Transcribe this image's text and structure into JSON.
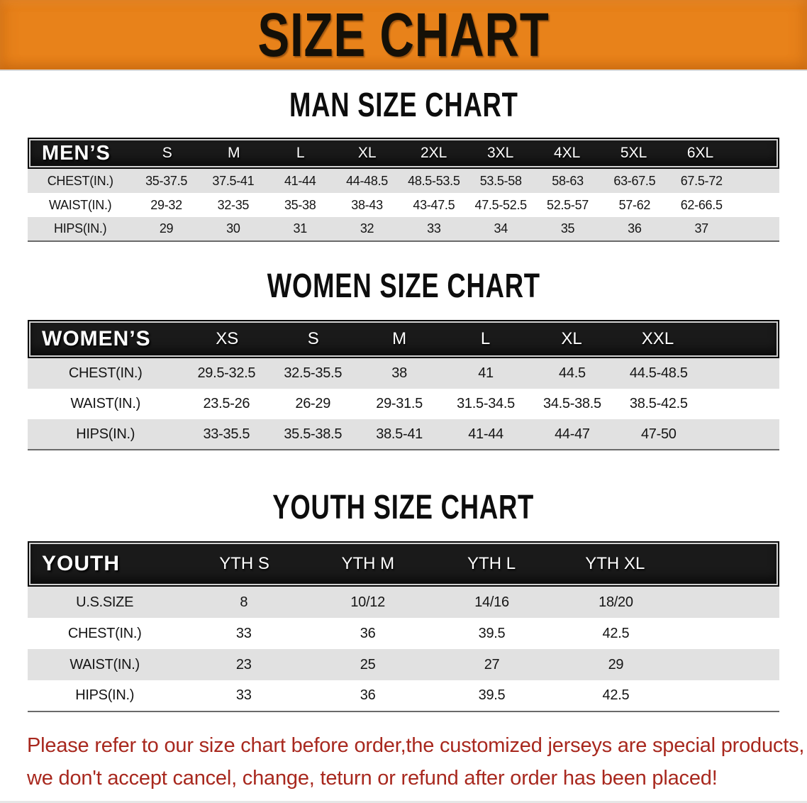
{
  "title_banner": {
    "text": "SIZE CHART"
  },
  "sections": [
    {
      "heading": "MAN SIZE CHART",
      "group_label": "MEN’S",
      "columns": [
        "S",
        "M",
        "L",
        "XL",
        "2XL",
        "3XL",
        "4XL",
        "5XL",
        "6XL"
      ],
      "rows": [
        {
          "label": "CHEST(IN.)",
          "values": [
            "35-37.5",
            "37.5-41",
            "41-44",
            "44-48.5",
            "48.5-53.5",
            "53.5-58",
            "58-63",
            "63-67.5",
            "67.5-72"
          ]
        },
        {
          "label": "WAIST(IN.)",
          "values": [
            "29-32",
            "32-35",
            "35-38",
            "38-43",
            "43-47.5",
            "47.5-52.5",
            "52.5-57",
            "57-62",
            "62-66.5"
          ]
        },
        {
          "label": "HIPS(IN.)",
          "values": [
            "29",
            "30",
            "31",
            "32",
            "33",
            "34",
            "35",
            "36",
            "37"
          ]
        }
      ]
    },
    {
      "heading": "WOMEN SIZE CHART",
      "group_label": "WOMEN’S",
      "columns": [
        "XS",
        "S",
        "M",
        "L",
        "XL",
        "XXL"
      ],
      "rows": [
        {
          "label": "CHEST(IN.)",
          "values": [
            "29.5-32.5",
            "32.5-35.5",
            "38",
            "41",
            "44.5",
            "44.5-48.5"
          ]
        },
        {
          "label": "WAIST(IN.)",
          "values": [
            "23.5-26",
            "26-29",
            "29-31.5",
            "31.5-34.5",
            "34.5-38.5",
            "38.5-42.5"
          ]
        },
        {
          "label": "HIPS(IN.)",
          "values": [
            "33-35.5",
            "35.5-38.5",
            "38.5-41",
            "41-44",
            "44-47",
            "47-50"
          ]
        }
      ]
    },
    {
      "heading": "YOUTH SIZE CHART",
      "group_label": "YOUTH",
      "columns": [
        "YTH S",
        "YTH M",
        "YTH L",
        "YTH XL"
      ],
      "rows": [
        {
          "label": "U.S.SIZE",
          "values": [
            "8",
            "10/12",
            "14/16",
            "18/20"
          ]
        },
        {
          "label": "CHEST(IN.)",
          "values": [
            "33",
            "36",
            "39.5",
            "42.5"
          ]
        },
        {
          "label": "WAIST(IN.)",
          "values": [
            "23",
            "25",
            "27",
            "29"
          ]
        },
        {
          "label": "HIPS(IN.)",
          "values": [
            "33",
            "36",
            "39.5",
            "42.5"
          ]
        }
      ]
    }
  ],
  "disclaimer": {
    "line1": "Please refer to our size chart before order,the customized jerseys are special products,",
    "line2": "we don't accept cancel, change, teturn or refund after order has been placed!"
  },
  "colors": {
    "banner_orange": "#E8821A",
    "header_black": "#1A1A1A",
    "row_gray": "#E1E1E1",
    "warning_red": "#A8281E"
  }
}
